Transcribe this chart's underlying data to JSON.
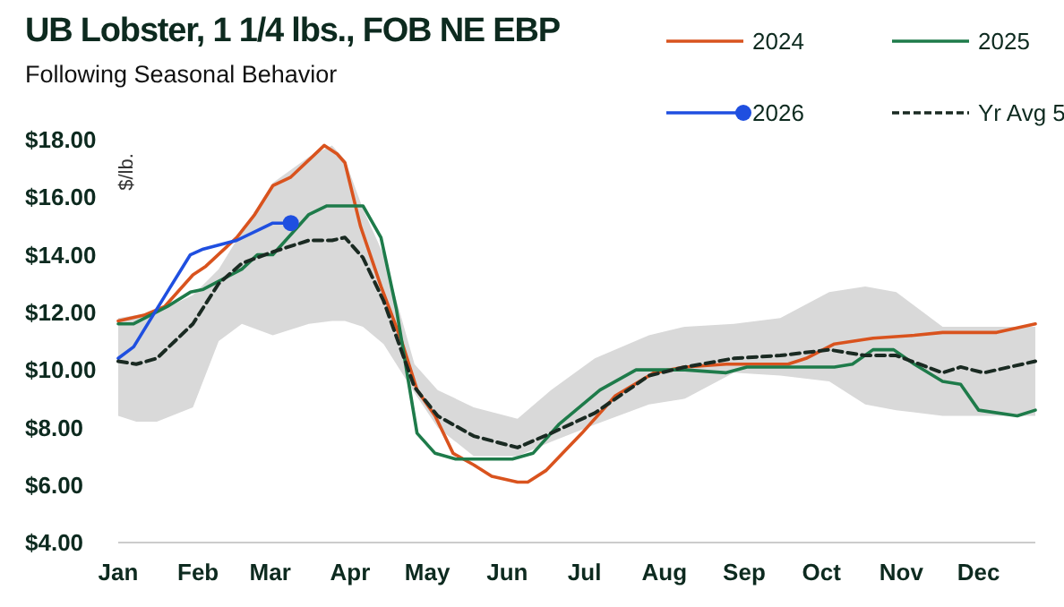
{
  "chart_data": {
    "type": "line",
    "title": "UB Lobster, 1 1/4 lbs., FOB NE EBP",
    "subtitle": "Following Seasonal Behavior",
    "ylabel": "$/lb.",
    "xlim": [
      "--01-01",
      "--12-23"
    ],
    "xticks": [
      {
        "value": "--01-01",
        "label": "Jan"
      },
      {
        "value": "--02-01",
        "label": "Feb"
      },
      {
        "value": "--03-01",
        "label": "Mar"
      },
      {
        "value": "--04-01",
        "label": "Apr"
      },
      {
        "value": "--05-01",
        "label": "May"
      },
      {
        "value": "--06-01",
        "label": "Jun"
      },
      {
        "value": "--07-01",
        "label": "Jul"
      },
      {
        "value": "--08-01",
        "label": "Aug"
      },
      {
        "value": "--09-01",
        "label": "Sep"
      },
      {
        "value": "--10-01",
        "label": "Oct"
      },
      {
        "value": "--11-01",
        "label": "Nov"
      },
      {
        "value": "--12-01",
        "label": "Dec"
      }
    ],
    "ylim": [
      4,
      18
    ],
    "yticks": [
      {
        "value": 4,
        "label": "$4.00"
      },
      {
        "value": 6,
        "label": "$6.00"
      },
      {
        "value": 8,
        "label": "$8.00"
      },
      {
        "value": 10,
        "label": "$10.00"
      },
      {
        "value": 12,
        "label": "$12.00"
      },
      {
        "value": 14,
        "label": "$14.00"
      },
      {
        "value": 16,
        "label": "$16.00"
      },
      {
        "value": 18,
        "label": "$18.00"
      }
    ],
    "grid": false,
    "legend": "top right",
    "series": [
      {
        "name": "2024",
        "color": "#d9531e",
        "line_style": "solid",
        "marker": "none",
        "x": [
          "--01-01",
          "--01-11",
          "--01-19",
          "--01-30",
          "--02-04",
          "--02-16",
          "--02-23",
          "--03-02",
          "--03-09",
          "--03-22",
          "--03-27",
          "--03-30",
          "--04-05",
          "--04-13",
          "--04-21",
          "--04-27",
          "--05-04",
          "--05-11",
          "--05-19",
          "--05-26",
          "--06-05",
          "--06-09",
          "--06-16",
          "--06-30",
          "--07-13",
          "--07-28",
          "--08-09",
          "--08-25",
          "--09-18",
          "--09-25",
          "--10-06",
          "--10-21",
          "--11-06",
          "--11-17",
          "--12-08",
          "--12-23"
        ],
        "values": [
          11.7,
          11.9,
          12.2,
          13.3,
          13.6,
          14.6,
          15.4,
          16.4,
          16.7,
          17.8,
          17.5,
          17.2,
          15.0,
          12.9,
          11.0,
          9.3,
          8.4,
          7.1,
          6.7,
          6.3,
          6.1,
          6.1,
          6.5,
          7.8,
          9.1,
          9.9,
          10.1,
          10.2,
          10.2,
          10.4,
          10.9,
          11.1,
          11.2,
          11.3,
          11.3,
          11.6
        ]
      },
      {
        "name": "2025",
        "color": "#1e7b4a",
        "line_style": "solid",
        "marker": "none",
        "x": [
          "--01-01",
          "--01-07",
          "--01-20",
          "--01-29",
          "--02-03",
          "--02-18",
          "--02-24",
          "--03-02",
          "--03-16",
          "--03-23",
          "--04-06",
          "--04-13",
          "--04-19",
          "--04-27",
          "--05-04",
          "--05-12",
          "--06-03",
          "--06-11",
          "--06-21",
          "--07-07",
          "--07-21",
          "--08-09",
          "--08-25",
          "--09-02",
          "--10-06",
          "--10-13",
          "--10-21",
          "--10-29",
          "--11-06",
          "--11-17",
          "--11-24",
          "--12-01",
          "--12-16",
          "--12-23"
        ],
        "values": [
          11.6,
          11.6,
          12.2,
          12.7,
          12.8,
          13.5,
          14.0,
          14.0,
          15.4,
          15.7,
          15.7,
          14.6,
          12.1,
          7.8,
          7.1,
          6.9,
          6.9,
          7.1,
          8.1,
          9.3,
          10.0,
          10.0,
          9.9,
          10.1,
          10.1,
          10.2,
          10.7,
          10.7,
          10.2,
          9.6,
          9.5,
          8.6,
          8.4,
          8.6
        ]
      },
      {
        "name": "2026",
        "color": "#1f4fe0",
        "line_style": "solid",
        "marker": "none",
        "x": [
          "--01-01",
          "--01-07",
          "--01-20",
          "--01-29",
          "--02-03",
          "--02-16",
          "--03-02",
          "--03-09"
        ],
        "values": [
          10.4,
          10.8,
          12.7,
          14.0,
          14.2,
          14.5,
          15.1,
          15.1
        ]
      },
      {
        "type": "scatter",
        "color": "#1f4fe0",
        "marker": "circle",
        "x": [
          "--03-09"
        ],
        "values": [
          15.1
        ]
      },
      {
        "name": "Yr Avg 5",
        "color": "#1a2a22",
        "line_style": "dashed",
        "marker": "none",
        "x": [
          "--01-01",
          "--01-08",
          "--01-16",
          "--01-30",
          "--02-09",
          "--02-18",
          "--03-02",
          "--03-16",
          "--03-25",
          "--03-30",
          "--04-06",
          "--04-14",
          "--04-26",
          "--05-05",
          "--05-19",
          "--06-05",
          "--06-18",
          "--07-05",
          "--07-26",
          "--08-09",
          "--08-28",
          "--09-15",
          "--10-04",
          "--10-18",
          "--10-30",
          "--11-17",
          "--11-24",
          "--12-03",
          "--12-23"
        ],
        "values": [
          10.3,
          10.2,
          10.4,
          11.6,
          13.0,
          13.7,
          14.1,
          14.5,
          14.5,
          14.6,
          13.9,
          12.4,
          9.4,
          8.4,
          7.7,
          7.3,
          7.8,
          8.5,
          9.8,
          10.1,
          10.4,
          10.5,
          10.7,
          10.5,
          10.5,
          9.9,
          10.1,
          9.9,
          10.3
        ],
        "lower": [
          8.4,
          8.2,
          8.2,
          8.7,
          11.0,
          11.6,
          11.2,
          11.6,
          11.7,
          11.7,
          11.5,
          10.9,
          9.2,
          8.0,
          7.0,
          7.0,
          7.5,
          8.1,
          8.8,
          9.0,
          9.9,
          9.8,
          9.6,
          8.8,
          8.6,
          8.4,
          8.4,
          8.4,
          8.4
        ],
        "upper": [
          11.8,
          11.9,
          12.0,
          12.6,
          13.5,
          14.8,
          16.5,
          17.4,
          17.8,
          17.3,
          15.6,
          14.0,
          10.2,
          9.3,
          8.7,
          8.3,
          9.3,
          10.4,
          11.2,
          11.5,
          11.6,
          11.8,
          12.7,
          12.9,
          12.7,
          11.5,
          11.5,
          11.5,
          11.5
        ]
      }
    ]
  }
}
